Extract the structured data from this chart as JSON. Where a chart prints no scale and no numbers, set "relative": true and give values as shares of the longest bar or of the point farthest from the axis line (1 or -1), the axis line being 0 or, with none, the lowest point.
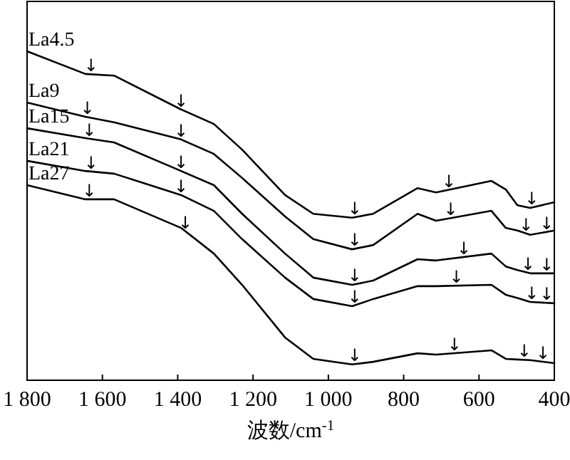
{
  "chart_data": {
    "type": "line",
    "relative": true,
    "xlabel": "波数/cm$^{-1}$",
    "xlim": [
      1800,
      400
    ],
    "xticks": [
      {
        "value": 1800,
        "label": "1 800"
      },
      {
        "value": 1600,
        "label": "1 600"
      },
      {
        "value": 1400,
        "label": "1 400"
      },
      {
        "value": 1200,
        "label": "1 200"
      },
      {
        "value": 1000,
        "label": "1 000"
      },
      800,
      600,
      400
    ],
    "tick_labels": "x",
    "legend": false,
    "grid": false,
    "marker": "none",
    "line_style": "solid",
    "x": [
      1800,
      1645,
      1569,
      1391,
      1304,
      1229,
      1115,
      1040,
      937,
      881,
      763,
      714,
      567,
      529,
      498,
      464,
      400
    ],
    "series": [
      {
        "name": "La4.5",
        "color": "#000000",
        "values": [
          1.0,
          0.931,
          0.926,
          0.823,
          0.779,
          0.701,
          0.563,
          0.506,
          0.494,
          0.506,
          0.584,
          0.571,
          0.606,
          0.58,
          0.532,
          0.524,
          0.541
        ]
      },
      {
        "name": "La9",
        "color": "#000000",
        "values": [
          0.844,
          0.801,
          0.784,
          0.732,
          0.688,
          0.615,
          0.498,
          0.429,
          0.398,
          0.411,
          0.506,
          0.485,
          0.515,
          0.463,
          0.455,
          0.442,
          0.455
        ]
      },
      {
        "name": "La15",
        "color": "#000000",
        "values": [
          0.766,
          0.736,
          0.723,
          0.636,
          0.593,
          0.506,
          0.385,
          0.312,
          0.29,
          0.303,
          0.368,
          0.364,
          0.385,
          0.346,
          0.335,
          0.325,
          0.325
        ]
      },
      {
        "name": "La21",
        "color": "#000000",
        "values": [
          0.667,
          0.636,
          0.628,
          0.563,
          0.515,
          0.429,
          0.312,
          0.247,
          0.225,
          0.247,
          0.286,
          0.286,
          0.29,
          0.26,
          0.25,
          0.238,
          0.234
        ]
      },
      {
        "name": "La27",
        "color": "#000000",
        "values": [
          0.593,
          0.55,
          0.55,
          0.463,
          0.385,
          0.29,
          0.13,
          0.065,
          0.048,
          0.056,
          0.082,
          0.078,
          0.091,
          0.065,
          0.063,
          0.061,
          0.052
        ]
      }
    ],
    "annotations": [
      {
        "text": "↓",
        "x": 1630,
        "y": 0.93
      },
      {
        "text": "↓",
        "x": 1391,
        "y": 0.823
      },
      {
        "text": "↓",
        "x": 930,
        "y": 0.495
      },
      {
        "text": "↓",
        "x": 680,
        "y": 0.579
      },
      {
        "text": "↓",
        "x": 460,
        "y": 0.525
      },
      {
        "text": "↓",
        "x": 1640,
        "y": 0.8
      },
      {
        "text": "↓",
        "x": 1391,
        "y": 0.732
      },
      {
        "text": "↓",
        "x": 930,
        "y": 0.4
      },
      {
        "text": "↓",
        "x": 675,
        "y": 0.493
      },
      {
        "text": "↓",
        "x": 475,
        "y": 0.446
      },
      {
        "text": "↓",
        "x": 420,
        "y": 0.451
      },
      {
        "text": "↓",
        "x": 1635,
        "y": 0.734
      },
      {
        "text": "↓",
        "x": 1391,
        "y": 0.636
      },
      {
        "text": "↓",
        "x": 930,
        "y": 0.292
      },
      {
        "text": "↓",
        "x": 640,
        "y": 0.375
      },
      {
        "text": "↓",
        "x": 470,
        "y": 0.327
      },
      {
        "text": "↓",
        "x": 420,
        "y": 0.325
      },
      {
        "text": "↓",
        "x": 1630,
        "y": 0.634
      },
      {
        "text": "↓",
        "x": 1391,
        "y": 0.563
      },
      {
        "text": "↓",
        "x": 930,
        "y": 0.228
      },
      {
        "text": "↓",
        "x": 660,
        "y": 0.287
      },
      {
        "text": "↓",
        "x": 460,
        "y": 0.238
      },
      {
        "text": "↓",
        "x": 420,
        "y": 0.235
      },
      {
        "text": "↓",
        "x": 1635,
        "y": 0.55
      },
      {
        "text": "↓",
        "x": 1380,
        "y": 0.453
      },
      {
        "text": "↓",
        "x": 930,
        "y": 0.049
      },
      {
        "text": "↓",
        "x": 665,
        "y": 0.082
      },
      {
        "text": "↓",
        "x": 480,
        "y": 0.062
      },
      {
        "text": "↓",
        "x": 430,
        "y": 0.056
      }
    ]
  }
}
